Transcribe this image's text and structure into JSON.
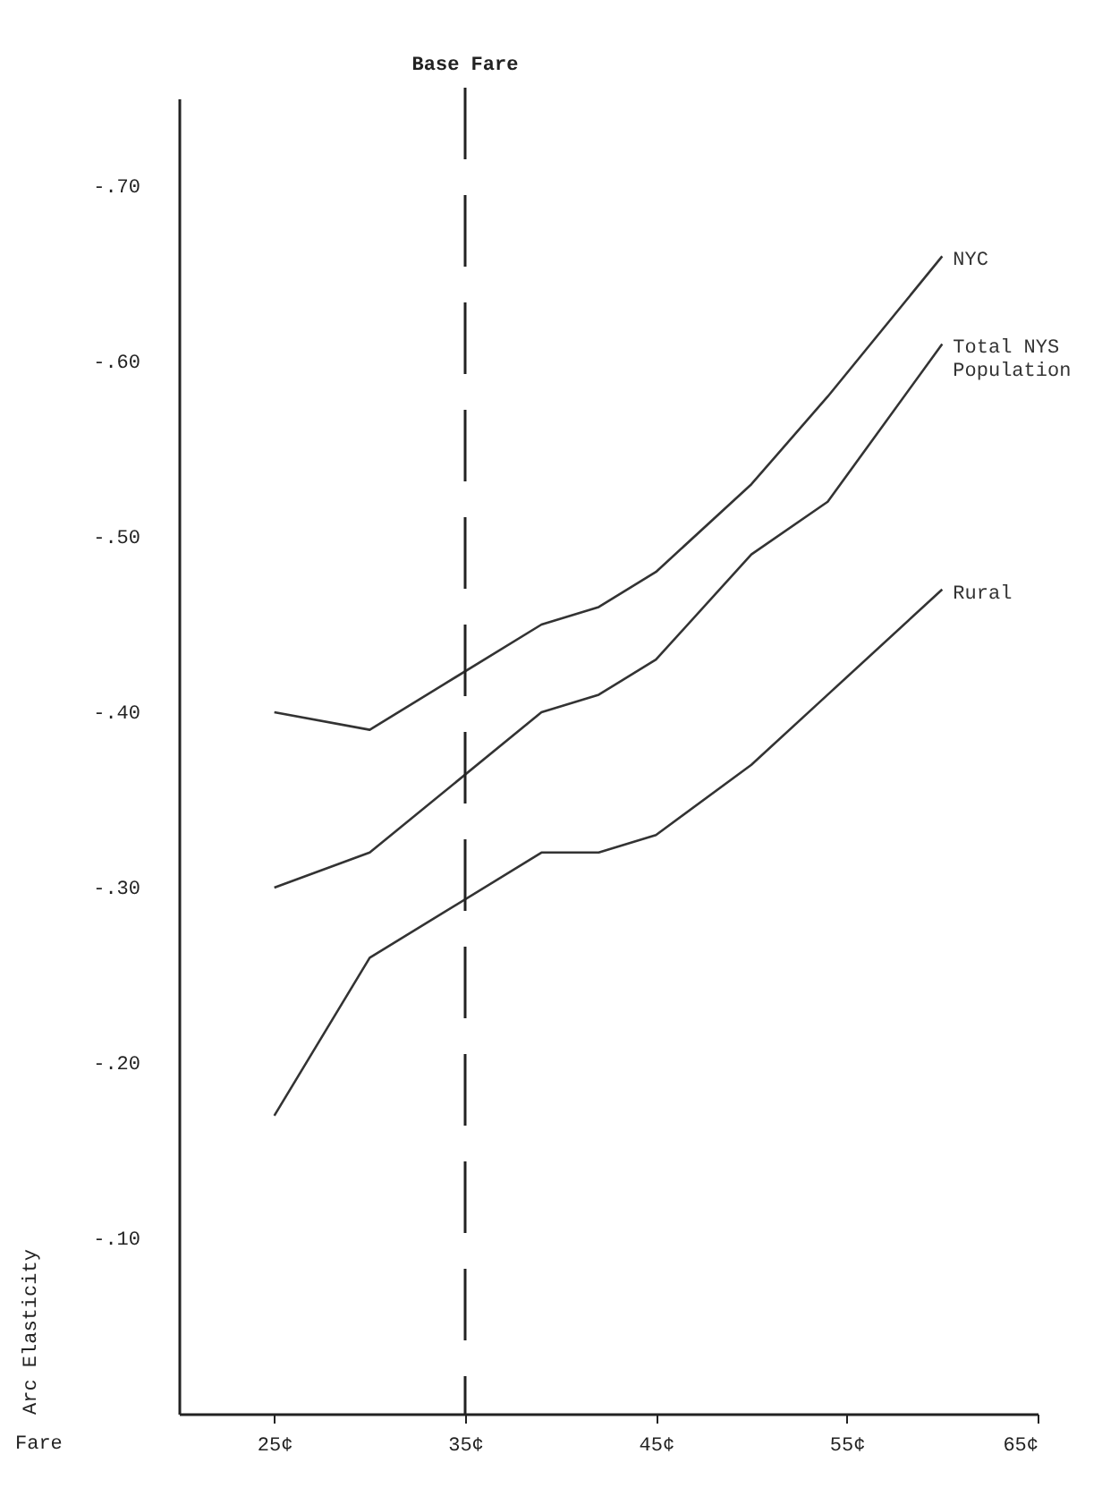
{
  "chart_data": {
    "type": "line",
    "xlabel": "Fare",
    "ylabel": "Arc Elasticity",
    "xlim": [
      20,
      65
    ],
    "xticks": [
      {
        "value": 25,
        "label": "25¢"
      },
      {
        "value": 35,
        "label": "35¢"
      },
      {
        "value": 45,
        "label": "45¢"
      },
      {
        "value": 55,
        "label": "55¢"
      },
      {
        "value": 65,
        "label": "65¢"
      }
    ],
    "ylim": [
      0,
      -0.75
    ],
    "yticks": [
      {
        "value": -0.1,
        "label": "-.10"
      },
      {
        "value": -0.2,
        "label": "-.20"
      },
      {
        "value": -0.3,
        "label": "-.30"
      },
      {
        "value": -0.4,
        "label": "-.40"
      },
      {
        "value": -0.5,
        "label": "-.50"
      },
      {
        "value": -0.6,
        "label": "-.60"
      },
      {
        "value": -0.7,
        "label": "-.70"
      }
    ],
    "x": [
      25,
      30,
      39,
      42,
      45,
      50,
      54,
      60
    ],
    "series": [
      {
        "name": "NYC",
        "color": "#333333",
        "values": [
          -0.4,
          -0.39,
          -0.45,
          -0.46,
          -0.48,
          -0.53,
          -0.58,
          -0.66
        ]
      },
      {
        "name": "Total NYS Population",
        "color": "#333333",
        "values": [
          -0.3,
          -0.32,
          -0.4,
          -0.41,
          -0.43,
          -0.49,
          -0.52,
          -0.61
        ]
      },
      {
        "name": "Rural",
        "color": "#333333",
        "values": [
          -0.17,
          -0.26,
          -0.32,
          -0.32,
          -0.33,
          -0.37,
          -0.41,
          -0.47
        ]
      }
    ],
    "ref_lines": [
      {
        "axis": "x",
        "value": 35,
        "label": "Base Fare",
        "line_style": "dashed"
      }
    ],
    "legend": false,
    "grid": false,
    "marker": "none",
    "line_style": "solid"
  }
}
